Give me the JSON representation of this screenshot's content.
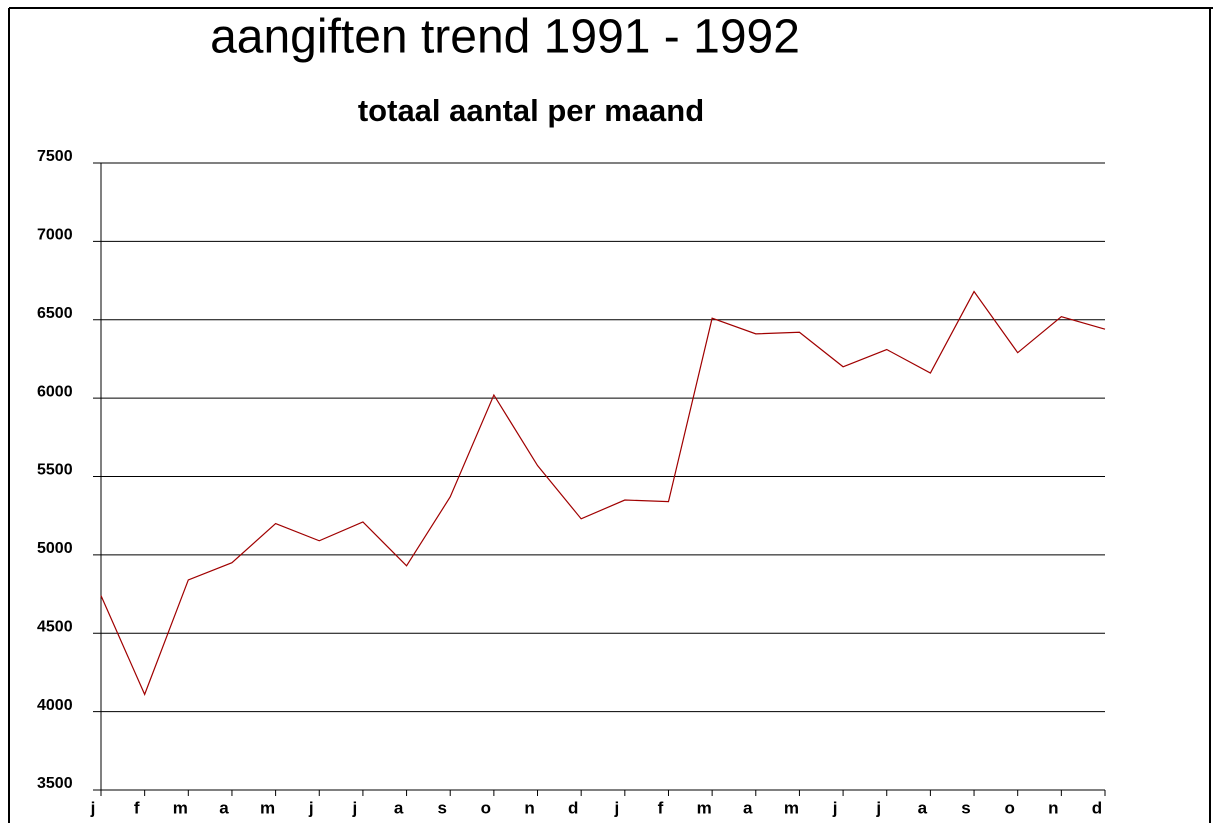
{
  "chart_data": {
    "type": "line",
    "title": "aangiften  trend  1991  -  1992",
    "subtitle": "totaal  aantal  per  maand",
    "categories": [
      "j",
      "f",
      "m",
      "a",
      "m",
      "j",
      "j",
      "a",
      "s",
      "o",
      "n",
      "d",
      "j",
      "f",
      "m",
      "a",
      "m",
      "j",
      "j",
      "a",
      "s",
      "o",
      "n",
      "d"
    ],
    "series": [
      {
        "name": "aangiften",
        "color": "#a00000",
        "values": [
          4740,
          4110,
          4840,
          4950,
          5200,
          5090,
          5210,
          4930,
          5370,
          6020,
          5570,
          5230,
          5350,
          5340,
          6510,
          6410,
          6420,
          6200,
          6310,
          6160,
          6680,
          6290,
          6520,
          6440
        ]
      }
    ],
    "ylim": [
      3500,
      7500
    ],
    "yticks": [
      3500,
      4000,
      4500,
      5000,
      5500,
      6000,
      6500,
      7000,
      7500
    ],
    "grid": true
  }
}
